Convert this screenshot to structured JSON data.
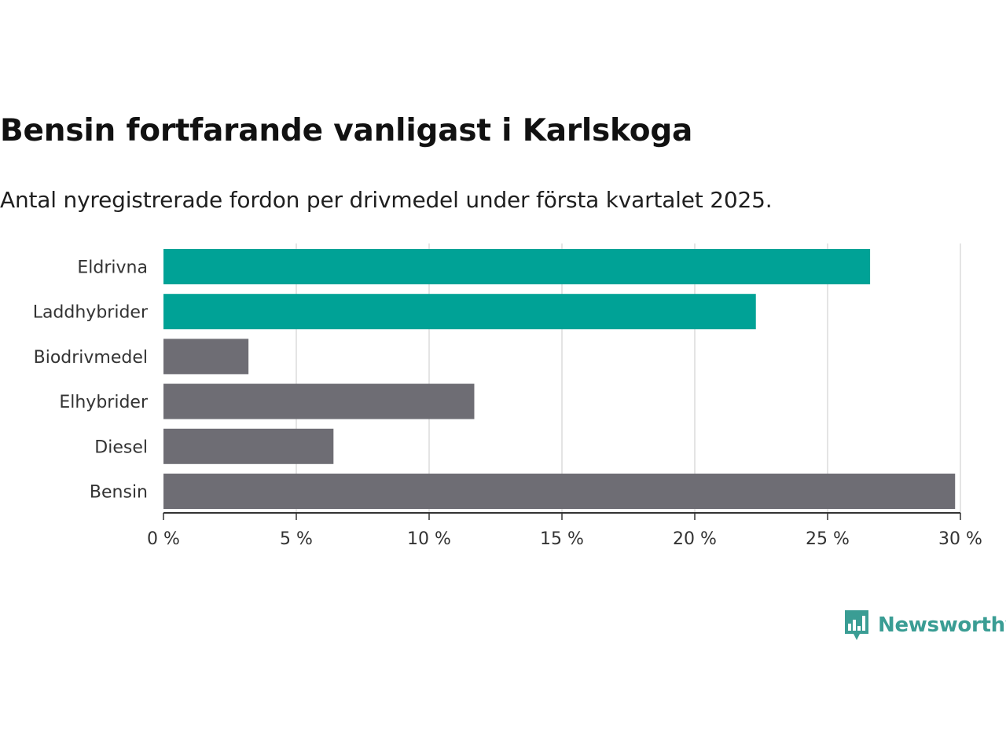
{
  "header": {
    "title": "Bensin fortfarande vanligast i Karlskoga",
    "subtitle": "Antal nyregistrerade fordon per drivmedel under första kvartalet 2025."
  },
  "brand": {
    "name": "Newsworthy",
    "color": "#3a9d94",
    "icon": "bar-chart-speech-bubble-icon"
  },
  "colors": {
    "highlight": "#00a296",
    "default": "#6e6d74",
    "grid": "#dcdcdc",
    "axis": "#333333"
  },
  "chart_data": {
    "type": "bar",
    "orientation": "horizontal",
    "categories": [
      "Eldrivna",
      "Laddhybrider",
      "Biodrivmedel",
      "Elhybrider",
      "Diesel",
      "Bensin"
    ],
    "values": [
      26.6,
      22.3,
      3.2,
      11.7,
      6.4,
      29.8
    ],
    "highlighted": [
      true,
      true,
      false,
      false,
      false,
      false
    ],
    "xlim": [
      0,
      30
    ],
    "xticks": [
      0,
      5,
      10,
      15,
      20,
      25,
      30
    ],
    "xtick_labels": [
      "0 %",
      "5 %",
      "10 %",
      "15 %",
      "20 %",
      "25 %",
      "30 %"
    ],
    "xlabel": "",
    "ylabel": "",
    "grid": "vertical",
    "legend": "none"
  }
}
